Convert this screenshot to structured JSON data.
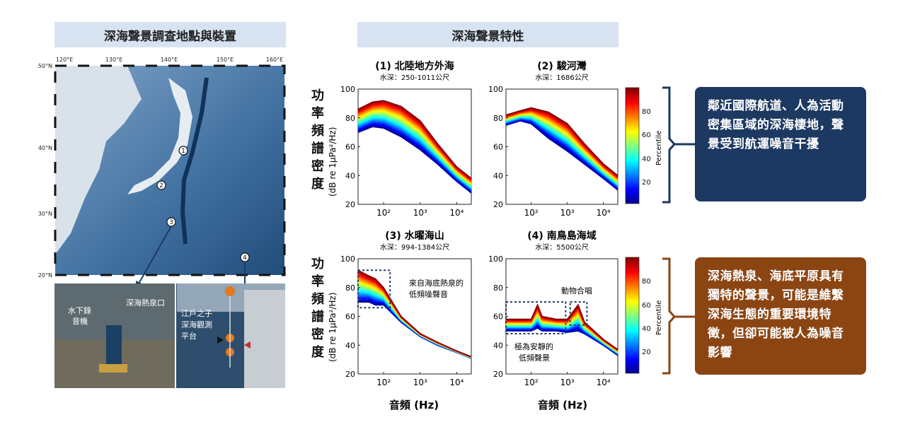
{
  "headers": {
    "left": "深海聲景調查地點與裝置",
    "right": "深海聲景特性"
  },
  "map": {
    "lon_labels": [
      "120°E",
      "130°E",
      "140°E",
      "150°E",
      "160°E"
    ],
    "lat_labels": [
      "50°N",
      "40°N",
      "30°N",
      "20°N"
    ],
    "sites": [
      "1",
      "2",
      "3",
      "4"
    ]
  },
  "photos": {
    "left_labels": [
      "水下錄",
      "音機",
      "深海熱泉口"
    ],
    "right_labels": [
      "江戶之子",
      "深海觀測",
      "平台"
    ]
  },
  "shared": {
    "ylabel_zh": [
      "功",
      "率",
      "頻",
      "譜",
      "密",
      "度"
    ],
    "ylabel_unit": "(dB re 1μPa²/Hz)",
    "xlabel": "音頻 (Hz)",
    "colorbar_label": "Percentile",
    "colorbar_ticks": [
      "80",
      "60",
      "40",
      "20"
    ]
  },
  "chart_data": [
    {
      "type": "line",
      "title": "(1) 北陸地方外海",
      "subtitle": "水深：250-1011公尺",
      "ylim": [
        20,
        100
      ],
      "yticks": [
        "100",
        "80",
        "60",
        "40",
        "20"
      ],
      "xticks": [
        "10²",
        "10³",
        "10⁴"
      ],
      "x": [
        20,
        50,
        100,
        300,
        1000,
        3000,
        10000,
        25000
      ],
      "series": [
        {
          "values": [
            86,
            91,
            92,
            88,
            78,
            62,
            46,
            38
          ]
        },
        {
          "values": [
            70,
            74,
            73,
            67,
            58,
            48,
            36,
            28
          ]
        }
      ]
    },
    {
      "type": "line",
      "title": "(2) 駿河灣",
      "subtitle": "水深：1686公尺",
      "ylim": [
        20,
        100
      ],
      "yticks": [
        "100",
        "80",
        "60",
        "40",
        "20"
      ],
      "xticks": [
        "10²",
        "10³",
        "10⁴"
      ],
      "x": [
        20,
        50,
        100,
        300,
        1000,
        3000,
        10000,
        25000
      ],
      "series": [
        {
          "values": [
            82,
            85,
            87,
            84,
            76,
            62,
            48,
            40
          ]
        },
        {
          "values": [
            75,
            78,
            76,
            66,
            57,
            48,
            38,
            30
          ]
        }
      ]
    },
    {
      "type": "line",
      "title": "(3) 水曜海山",
      "subtitle": "水深：994-1384公尺",
      "ylim": [
        20,
        100
      ],
      "yticks": [
        "100",
        "80",
        "60",
        "40",
        "20"
      ],
      "xticks": [
        "10²",
        "10³",
        "10⁴"
      ],
      "x": [
        20,
        40,
        60,
        100,
        300,
        1000,
        3000,
        10000,
        25000
      ],
      "series": [
        {
          "values": [
            92,
            88,
            86,
            80,
            60,
            48,
            42,
            36,
            32
          ]
        },
        {
          "values": [
            70,
            70,
            68,
            68,
            56,
            46,
            40,
            35,
            31
          ]
        }
      ],
      "annotations": [
        "來自海底熱泉的",
        "低頻噪聲音"
      ]
    },
    {
      "type": "line",
      "title": "(4) 南鳥島海域",
      "subtitle": "水深：5500公尺",
      "ylim": [
        20,
        100
      ],
      "yticks": [
        "100",
        "80",
        "60",
        "40",
        "20"
      ],
      "xticks": [
        "10²",
        "10³",
        "10⁴"
      ],
      "x": [
        20,
        100,
        150,
        200,
        500,
        1000,
        2000,
        3000,
        10000,
        25000
      ],
      "series": [
        {
          "values": [
            58,
            58,
            68,
            60,
            58,
            58,
            68,
            56,
            44,
            37
          ]
        },
        {
          "values": [
            50,
            50,
            52,
            50,
            50,
            49,
            50,
            48,
            40,
            33
          ]
        }
      ],
      "annotations": [
        "動物合唱",
        "極為安靜的",
        "低頻聲景"
      ]
    }
  ],
  "callouts": {
    "top": "鄰近國際航道、人為活動密集區域的深海棲地，聲景受到航運噪音干擾",
    "bottom": "深海熱泉、海底平原具有獨特的聲景，可能是維繫深海生態的重要環境特徵，但卻可能被人為噪音影響"
  }
}
